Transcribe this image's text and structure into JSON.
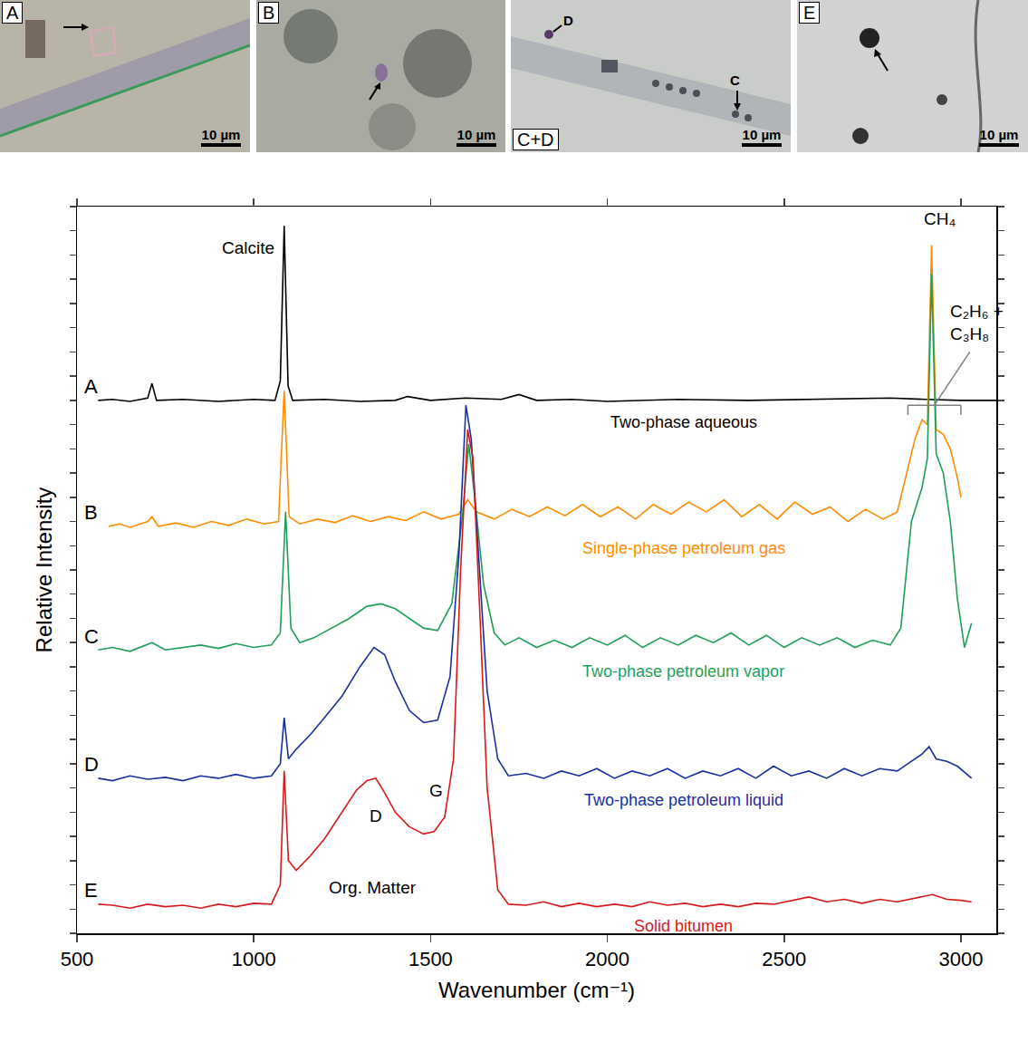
{
  "photos": [
    {
      "label": "A",
      "scale_bar": "10 µm"
    },
    {
      "label": "B",
      "scale_bar": "10 µm"
    },
    {
      "label": "C+D",
      "scale_bar": "10 µm",
      "markers": [
        "D",
        "C"
      ]
    },
    {
      "label": "E",
      "scale_bar": "10 µm"
    }
  ],
  "chart_data": {
    "type": "line",
    "x_label": "Wavenumber (cm⁻¹)",
    "y_label": "Relative Intensity",
    "xlim": [
      500,
      3100
    ],
    "xticks": [
      500,
      1000,
      1500,
      2000,
      2500,
      3000
    ],
    "ylim": [
      0,
      15
    ],
    "yticks": [
      0,
      0.5,
      1,
      1.5,
      2,
      2.5,
      3,
      3.5,
      4,
      4.5,
      5,
      5.5,
      6,
      6.5,
      7,
      7.5,
      8,
      8.5,
      9,
      9.5,
      10,
      10.5,
      11,
      11.5,
      12,
      12.5,
      13,
      13.5,
      14,
      14.5,
      15
    ],
    "tick_labels": "x",
    "grid": false,
    "series": [
      {
        "letter": "A",
        "name": "Two-phase aqueous",
        "color": "#000000",
        "x": [
          560,
          600,
          650,
          700,
          712,
          725,
          800,
          900,
          1000,
          1060,
          1075,
          1086,
          1097,
          1110,
          1200,
          1300,
          1400,
          1435,
          1500,
          1600,
          1700,
          1750,
          1800,
          1900,
          2000,
          2200,
          2400,
          2600,
          2800,
          2900,
          3000,
          3100
        ],
        "values": [
          11.0,
          11.02,
          10.98,
          11.05,
          11.35,
          11.0,
          11.02,
          10.98,
          11.02,
          11.0,
          11.4,
          14.6,
          11.3,
          11.0,
          11.02,
          10.98,
          11.0,
          11.08,
          11.0,
          11.05,
          11.02,
          11.12,
          11.0,
          11.02,
          10.98,
          11.02,
          11.0,
          11.03,
          11.05,
          11.02,
          11.0,
          11.0
        ]
      },
      {
        "letter": "B",
        "name": "Single-phase petroleum gas",
        "color": "#ff8c00",
        "x": [
          590,
          620,
          650,
          700,
          712,
          730,
          780,
          830,
          880,
          930,
          980,
          1030,
          1070,
          1086,
          1100,
          1130,
          1180,
          1230,
          1280,
          1330,
          1380,
          1430,
          1480,
          1530,
          1580,
          1605,
          1630,
          1680,
          1730,
          1780,
          1830,
          1880,
          1930,
          1980,
          2030,
          2080,
          2130,
          2180,
          2230,
          2280,
          2330,
          2380,
          2430,
          2480,
          2530,
          2580,
          2630,
          2680,
          2730,
          2780,
          2820,
          2850,
          2870,
          2890,
          2905,
          2917,
          2930,
          2950,
          2970,
          2990,
          3000
        ],
        "values": [
          8.4,
          8.45,
          8.38,
          8.5,
          8.6,
          8.4,
          8.47,
          8.38,
          8.5,
          8.42,
          8.55,
          8.45,
          8.5,
          11.2,
          8.6,
          8.45,
          8.55,
          8.48,
          8.62,
          8.5,
          8.6,
          8.52,
          8.7,
          8.55,
          8.65,
          8.95,
          8.7,
          8.55,
          8.75,
          8.6,
          8.8,
          8.62,
          8.85,
          8.6,
          8.8,
          8.55,
          8.85,
          8.65,
          8.9,
          8.7,
          8.95,
          8.6,
          8.85,
          8.55,
          8.9,
          8.65,
          8.8,
          8.5,
          8.75,
          8.55,
          8.7,
          9.6,
          10.2,
          10.6,
          10.5,
          14.2,
          10.4,
          10.3,
          10.0,
          9.4,
          9.0
        ]
      },
      {
        "letter": "C",
        "name": "Two-phase petroleum vapor",
        "color": "#1f9e5a",
        "x": [
          560,
          600,
          650,
          712,
          750,
          800,
          850,
          900,
          950,
          1000,
          1050,
          1075,
          1090,
          1105,
          1130,
          1170,
          1220,
          1270,
          1320,
          1360,
          1400,
          1440,
          1480,
          1520,
          1560,
          1590,
          1608,
          1625,
          1650,
          1680,
          1710,
          1750,
          1800,
          1850,
          1900,
          1950,
          2000,
          2050,
          2100,
          2150,
          2200,
          2250,
          2300,
          2350,
          2400,
          2450,
          2500,
          2550,
          2600,
          2650,
          2700,
          2750,
          2800,
          2830,
          2860,
          2890,
          2905,
          2917,
          2930,
          2950,
          2970,
          2990,
          3010,
          3030
        ],
        "values": [
          5.85,
          5.9,
          5.82,
          6.0,
          5.85,
          5.9,
          5.95,
          5.88,
          5.98,
          5.9,
          5.95,
          6.2,
          8.7,
          6.3,
          6.0,
          6.1,
          6.3,
          6.5,
          6.75,
          6.8,
          6.7,
          6.5,
          6.3,
          6.25,
          6.8,
          8.6,
          10.1,
          9.0,
          7.2,
          6.2,
          5.95,
          6.1,
          5.9,
          6.05,
          5.9,
          6.1,
          5.95,
          6.15,
          5.9,
          6.1,
          5.95,
          6.15,
          6.0,
          6.2,
          5.95,
          6.15,
          5.9,
          6.1,
          5.95,
          6.1,
          5.9,
          6.05,
          5.95,
          6.3,
          8.5,
          9.2,
          9.8,
          13.6,
          9.9,
          9.5,
          8.5,
          6.9,
          5.9,
          6.4
        ]
      },
      {
        "letter": "D",
        "name": "Two-phase petroleum liquid",
        "color": "#1a2fa0",
        "x": [
          560,
          600,
          650,
          700,
          750,
          800,
          850,
          900,
          950,
          1000,
          1050,
          1075,
          1086,
          1098,
          1120,
          1160,
          1200,
          1250,
          1300,
          1340,
          1370,
          1400,
          1440,
          1480,
          1520,
          1555,
          1580,
          1600,
          1615,
          1635,
          1660,
          1690,
          1720,
          1770,
          1820,
          1870,
          1920,
          1970,
          2020,
          2070,
          2120,
          2170,
          2220,
          2270,
          2320,
          2370,
          2420,
          2470,
          2520,
          2570,
          2620,
          2670,
          2720,
          2770,
          2820,
          2860,
          2890,
          2910,
          2930,
          2960,
          2990,
          3030
        ],
        "values": [
          3.2,
          3.15,
          3.25,
          3.18,
          3.22,
          3.15,
          3.25,
          3.2,
          3.28,
          3.2,
          3.25,
          3.5,
          4.45,
          3.6,
          3.8,
          4.1,
          4.45,
          4.9,
          5.5,
          5.9,
          5.75,
          5.2,
          4.6,
          4.35,
          4.4,
          5.3,
          7.8,
          10.9,
          10.2,
          7.9,
          5.0,
          3.6,
          3.25,
          3.3,
          3.2,
          3.35,
          3.25,
          3.4,
          3.2,
          3.35,
          3.25,
          3.4,
          3.2,
          3.35,
          3.25,
          3.4,
          3.2,
          3.45,
          3.25,
          3.35,
          3.2,
          3.4,
          3.25,
          3.4,
          3.35,
          3.55,
          3.7,
          3.85,
          3.6,
          3.55,
          3.45,
          3.2
        ]
      },
      {
        "letter": "E",
        "name": "Solid bitumen",
        "color": "#d7191c",
        "x": [
          560,
          600,
          650,
          700,
          750,
          800,
          850,
          900,
          950,
          1000,
          1050,
          1075,
          1086,
          1098,
          1120,
          1160,
          1200,
          1250,
          1290,
          1320,
          1345,
          1370,
          1400,
          1440,
          1480,
          1510,
          1540,
          1565,
          1585,
          1605,
          1620,
          1640,
          1660,
          1690,
          1720,
          1770,
          1820,
          1870,
          1920,
          1970,
          2020,
          2070,
          2120,
          2170,
          2220,
          2270,
          2320,
          2370,
          2420,
          2470,
          2520,
          2570,
          2620,
          2670,
          2720,
          2770,
          2820,
          2870,
          2920,
          2960,
          3000,
          3030
        ],
        "values": [
          0.6,
          0.58,
          0.52,
          0.6,
          0.55,
          0.58,
          0.52,
          0.6,
          0.55,
          0.62,
          0.6,
          1.0,
          3.35,
          1.5,
          1.3,
          1.6,
          1.95,
          2.5,
          2.95,
          3.15,
          3.2,
          2.9,
          2.5,
          2.2,
          2.05,
          2.1,
          2.4,
          3.6,
          7.5,
          10.4,
          9.8,
          6.5,
          3.0,
          0.9,
          0.6,
          0.58,
          0.65,
          0.55,
          0.62,
          0.55,
          0.6,
          0.55,
          0.65,
          0.58,
          0.62,
          0.55,
          0.6,
          0.55,
          0.62,
          0.6,
          0.68,
          0.75,
          0.65,
          0.7,
          0.62,
          0.7,
          0.65,
          0.72,
          0.8,
          0.7,
          0.68,
          0.65
        ]
      }
    ],
    "annotations": [
      {
        "text": "Calcite",
        "x": 985,
        "y": 14.15
      },
      {
        "text": "CH₄",
        "x": 2940,
        "y": 14.75
      },
      {
        "text": "C₂H₆ + C₃H₈",
        "x": 3045,
        "y": 12.6,
        "bracket": [
          2850,
          3000,
          10.9
        ]
      },
      {
        "text": "D",
        "x": 1345,
        "y": 2.43
      },
      {
        "text": "G",
        "x": 1515,
        "y": 2.95
      },
      {
        "text": "Org. Matter",
        "x": 1336,
        "y": 0.95
      }
    ]
  }
}
